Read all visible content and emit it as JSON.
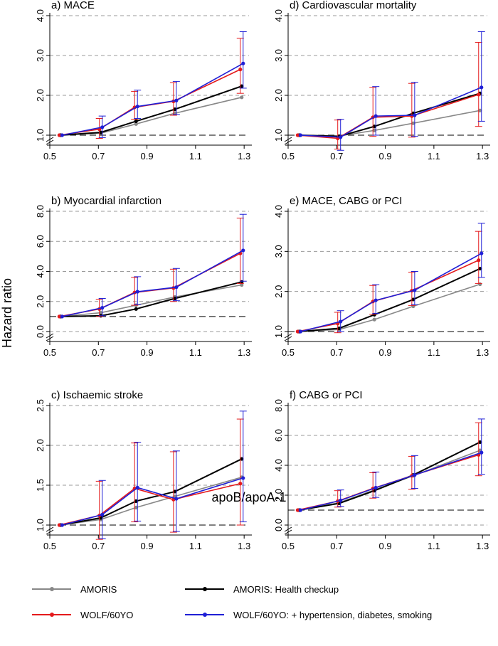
{
  "figure": {
    "ylabel": "Hazard ratio",
    "xlabel": "apoB/apoA-1",
    "legend": [
      {
        "name": "AMORIS",
        "color": "#888888"
      },
      {
        "name": "AMORIS: Health checkup",
        "color": "#000000"
      },
      {
        "name": "WOLF/60YO",
        "color": "#e41a1c"
      },
      {
        "name": "WOLF/60YO: + hypertension, diabetes, smoking",
        "color": "#1f1fd6"
      }
    ]
  },
  "chart_data": [
    {
      "type": "line",
      "title": "a) MACE",
      "xlim": [
        0.5,
        1.32
      ],
      "xticks": [
        "0.5",
        "0.7",
        "0.9",
        "1.1",
        "1.3"
      ],
      "ylim": [
        1.0,
        4.0
      ],
      "yticks": [
        "1.0",
        "2.0",
        "3.0",
        "4.0"
      ],
      "ref": 1.0,
      "x": [
        0.545,
        0.71,
        0.855,
        1.015,
        1.29
      ],
      "series": [
        {
          "name": "AMORIS",
          "color": "#888888",
          "values": [
            1.0,
            1.05,
            1.28,
            1.55,
            1.95
          ]
        },
        {
          "name": "AMORIS: Health checkup",
          "color": "#000000",
          "values": [
            1.0,
            1.07,
            1.35,
            1.65,
            2.23
          ]
        },
        {
          "name": "WOLF/60YO",
          "color": "#e41a1c",
          "values": [
            1.0,
            1.15,
            1.7,
            1.85,
            2.65
          ],
          "lo": [
            1.0,
            0.92,
            1.4,
            1.5,
            2.05
          ],
          "hi": [
            1.0,
            1.42,
            2.1,
            2.32,
            3.43
          ]
        },
        {
          "name": "WOLF/60YO: + hypertension, diabetes, smoking",
          "color": "#1f1fd6",
          "values": [
            1.0,
            1.2,
            1.72,
            1.87,
            2.8
          ],
          "lo": [
            1.0,
            0.94,
            1.42,
            1.52,
            2.18
          ],
          "hi": [
            1.0,
            1.48,
            2.13,
            2.35,
            3.6
          ]
        }
      ]
    },
    {
      "type": "line",
      "title": "d) Cardiovascular mortality",
      "xlim": [
        0.5,
        1.32
      ],
      "xticks": [
        "0.5",
        "0.7",
        "0.9",
        "1.1",
        "1.3"
      ],
      "ylim": [
        1.0,
        4.0
      ],
      "yticks": [
        "1.0",
        "2.0",
        "3.0",
        "4.0"
      ],
      "ref": 1.0,
      "x": [
        0.545,
        0.71,
        0.855,
        1.015,
        1.29
      ],
      "series": [
        {
          "name": "AMORIS",
          "color": "#888888",
          "values": [
            1.0,
            0.98,
            1.12,
            1.3,
            1.62
          ]
        },
        {
          "name": "AMORIS: Health checkup",
          "color": "#000000",
          "values": [
            1.0,
            0.97,
            1.22,
            1.55,
            2.05
          ]
        },
        {
          "name": "WOLF/60YO",
          "color": "#e41a1c",
          "values": [
            1.0,
            0.92,
            1.45,
            1.48,
            2.02
          ],
          "lo": [
            1.0,
            0.65,
            0.97,
            0.95,
            1.22
          ],
          "hi": [
            1.0,
            1.38,
            2.2,
            2.3,
            3.33
          ]
        },
        {
          "name": "WOLF/60YO: + hypertension, diabetes, smoking",
          "color": "#1f1fd6",
          "values": [
            1.0,
            0.95,
            1.48,
            1.5,
            2.2
          ],
          "lo": [
            1.0,
            0.62,
            1.0,
            0.97,
            1.35
          ],
          "hi": [
            1.0,
            1.4,
            2.22,
            2.33,
            3.6
          ]
        }
      ]
    },
    {
      "type": "line",
      "title": "b) Myocardial infarction",
      "xlim": [
        0.5,
        1.32
      ],
      "xticks": [
        "0.5",
        "0.7",
        "0.9",
        "1.1",
        "1.3"
      ],
      "ylim": [
        0.0,
        8.0
      ],
      "yticks": [
        "0.0",
        "2.0",
        "4.0",
        "6.0",
        "8.0"
      ],
      "ref": 1.0,
      "x": [
        0.545,
        0.71,
        0.855,
        1.015,
        1.29
      ],
      "series": [
        {
          "name": "AMORIS",
          "color": "#888888",
          "values": [
            1.0,
            1.25,
            1.75,
            2.3,
            3.1
          ]
        },
        {
          "name": "AMORIS: Health checkup",
          "color": "#000000",
          "values": [
            1.0,
            1.05,
            1.5,
            2.2,
            3.3
          ]
        },
        {
          "name": "WOLF/60YO",
          "color": "#e41a1c",
          "values": [
            1.0,
            1.5,
            2.6,
            2.9,
            5.2
          ],
          "lo": [
            1.0,
            1.0,
            1.75,
            2.0,
            3.2
          ],
          "hi": [
            1.0,
            2.15,
            3.6,
            4.15,
            7.55
          ]
        },
        {
          "name": "WOLF/60YO: + hypertension, diabetes, smoking",
          "color": "#1f1fd6",
          "values": [
            1.0,
            1.58,
            2.65,
            2.95,
            5.4
          ],
          "lo": [
            1.0,
            1.05,
            1.8,
            2.05,
            3.35
          ],
          "hi": [
            1.0,
            2.2,
            3.65,
            4.2,
            7.8
          ]
        }
      ]
    },
    {
      "type": "line",
      "title": "e) MACE, CABG or PCI",
      "xlim": [
        0.5,
        1.32
      ],
      "xticks": [
        "0.5",
        "0.7",
        "0.9",
        "1.1",
        "1.3"
      ],
      "ylim": [
        1.0,
        4.0
      ],
      "yticks": [
        "1.0",
        "2.0",
        "3.0",
        "4.0"
      ],
      "ref": 1.0,
      "x": [
        0.545,
        0.71,
        0.855,
        1.015,
        1.29
      ],
      "series": [
        {
          "name": "AMORIS",
          "color": "#888888",
          "values": [
            1.0,
            1.05,
            1.3,
            1.63,
            2.18
          ]
        },
        {
          "name": "AMORIS: Health checkup",
          "color": "#000000",
          "values": [
            1.0,
            1.08,
            1.42,
            1.8,
            2.57
          ]
        },
        {
          "name": "WOLF/60YO",
          "color": "#e41a1c",
          "values": [
            1.0,
            1.2,
            1.75,
            2.02,
            2.78
          ],
          "lo": [
            1.0,
            0.97,
            1.43,
            1.65,
            2.2
          ],
          "hi": [
            1.0,
            1.48,
            2.15,
            2.48,
            3.5
          ]
        },
        {
          "name": "WOLF/60YO: + hypertension, diabetes, smoking",
          "color": "#1f1fd6",
          "values": [
            1.0,
            1.25,
            1.78,
            2.03,
            2.95
          ],
          "lo": [
            1.0,
            1.0,
            1.45,
            1.67,
            2.35
          ],
          "hi": [
            1.0,
            1.52,
            2.17,
            2.5,
            3.7
          ]
        }
      ]
    },
    {
      "type": "line",
      "title": "c) Ischaemic stroke",
      "xlim": [
        0.5,
        1.32
      ],
      "xticks": [
        "0.5",
        "0.7",
        "0.9",
        "1.1",
        "1.3"
      ],
      "ylim": [
        1.0,
        2.5
      ],
      "yticks": [
        "1.0",
        "1.5",
        "2.0",
        "2.5"
      ],
      "ref": 1.0,
      "x": [
        0.545,
        0.71,
        0.855,
        1.015,
        1.29
      ],
      "series": [
        {
          "name": "AMORIS",
          "color": "#888888",
          "values": [
            1.0,
            1.07,
            1.22,
            1.36,
            1.6
          ]
        },
        {
          "name": "AMORIS: Health checkup",
          "color": "#000000",
          "values": [
            1.0,
            1.09,
            1.3,
            1.42,
            1.83
          ]
        },
        {
          "name": "WOLF/60YO",
          "color": "#e41a1c",
          "values": [
            1.0,
            1.12,
            1.46,
            1.32,
            1.52
          ],
          "lo": [
            1.0,
            0.82,
            1.04,
            0.91,
            1.0
          ],
          "hi": [
            1.0,
            1.55,
            2.03,
            1.92,
            2.33
          ]
        },
        {
          "name": "WOLF/60YO: + hypertension, diabetes, smoking",
          "color": "#1f1fd6",
          "values": [
            1.0,
            1.13,
            1.47,
            1.33,
            1.59
          ],
          "lo": [
            1.0,
            0.83,
            1.05,
            0.92,
            1.04
          ],
          "hi": [
            1.0,
            1.56,
            2.04,
            1.93,
            2.43
          ]
        }
      ]
    },
    {
      "type": "line",
      "title": "f) CABG or PCI",
      "xlim": [
        0.5,
        1.32
      ],
      "xticks": [
        "0.5",
        "0.7",
        "0.9",
        "1.1",
        "1.3"
      ],
      "ylim": [
        0.0,
        8.0
      ],
      "yticks": [
        "0.0",
        "2.0",
        "4.0",
        "6.0",
        "8.0"
      ],
      "ref": 1.0,
      "x": [
        0.545,
        0.71,
        0.855,
        1.015,
        1.29
      ],
      "series": [
        {
          "name": "AMORIS",
          "color": "#888888",
          "values": [
            1.0,
            1.5,
            2.35,
            3.3,
            5.0
          ]
        },
        {
          "name": "AMORIS: Health checkup",
          "color": "#000000",
          "values": [
            1.0,
            1.45,
            2.3,
            3.35,
            5.55
          ]
        },
        {
          "name": "WOLF/60YO",
          "color": "#e41a1c",
          "values": [
            1.0,
            1.6,
            2.45,
            3.3,
            4.7
          ],
          "lo": [
            1.0,
            1.2,
            1.8,
            2.4,
            3.3
          ],
          "hi": [
            1.0,
            2.3,
            3.5,
            4.6,
            6.85
          ]
        },
        {
          "name": "WOLF/60YO: + hypertension, diabetes, smoking",
          "color": "#1f1fd6",
          "values": [
            1.0,
            1.65,
            2.5,
            3.35,
            4.85
          ],
          "lo": [
            1.0,
            1.25,
            1.85,
            2.45,
            3.4
          ],
          "hi": [
            1.0,
            2.35,
            3.55,
            4.65,
            7.1
          ]
        }
      ]
    }
  ]
}
